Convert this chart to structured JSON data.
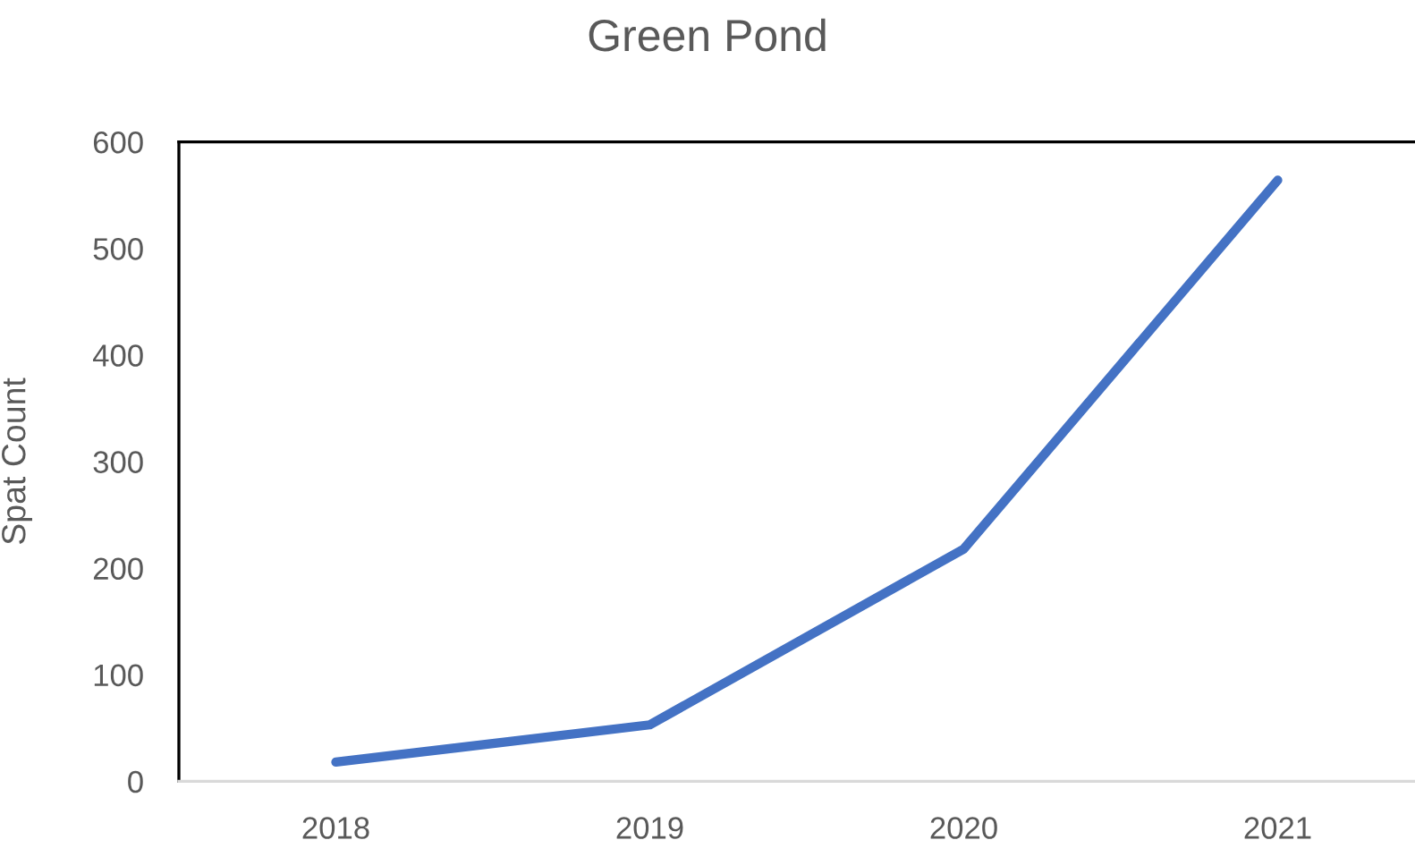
{
  "chart_data": {
    "type": "line",
    "title": "Green Pond",
    "ylabel": "Spat Count",
    "categories": [
      "2018",
      "2019",
      "2020",
      "2021"
    ],
    "series": [
      {
        "color": "#4472c4",
        "values": [
          18,
          53,
          218,
          564
        ]
      }
    ],
    "ylim": [
      0,
      600
    ],
    "yticks": [
      0,
      100,
      200,
      300,
      400,
      500,
      600
    ],
    "line_style": "solid"
  }
}
